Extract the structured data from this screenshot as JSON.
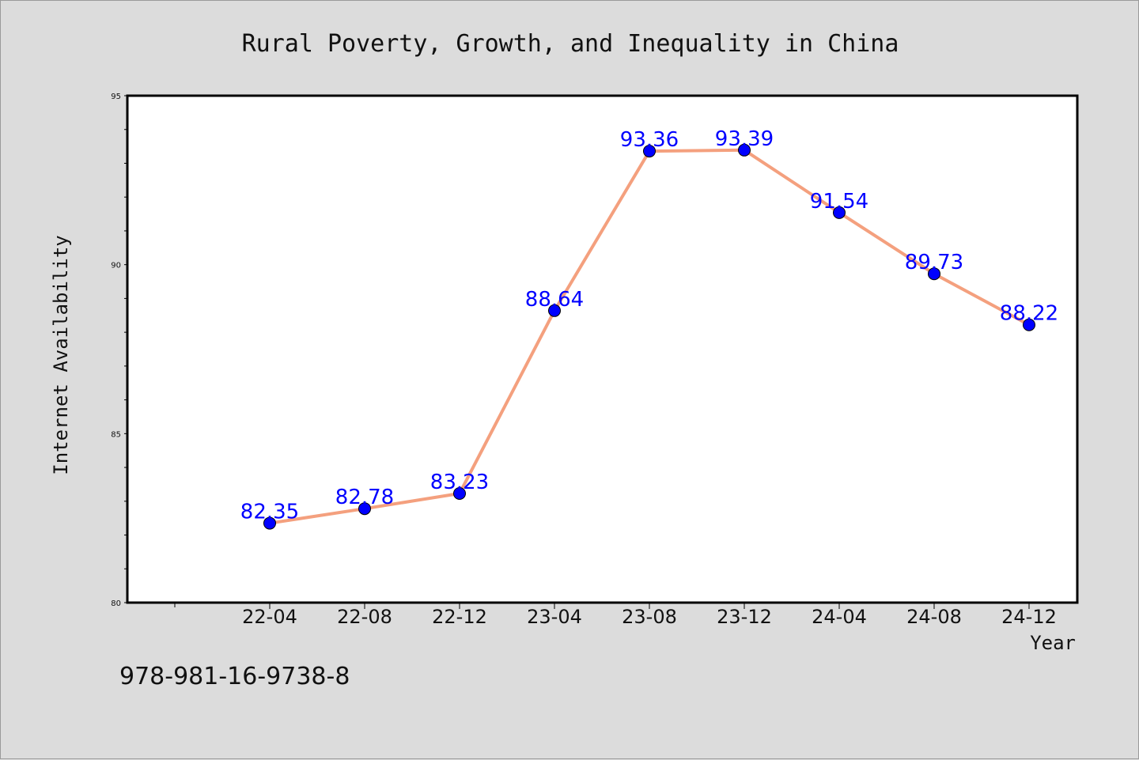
{
  "footer_code": "978-981-16-9738-8",
  "colors": {
    "line": "#f4a07e",
    "marker": "#0000ff",
    "data_label": "#0000ff",
    "plot_bg": "#ffffff",
    "page_bg": "#dcdcdc"
  },
  "chart_data": {
    "type": "line",
    "title": "Rural Poverty, Growth, and Inequality in China",
    "xlabel": "Year",
    "ylabel": "Internet Availability",
    "categories": [
      "22-04",
      "22-08",
      "22-12",
      "23-04",
      "23-08",
      "23-12",
      "24-04",
      "24-08",
      "24-12"
    ],
    "series": [
      {
        "values": [
          82.35,
          82.78,
          83.23,
          88.64,
          93.36,
          93.39,
          91.54,
          89.73,
          88.22
        ],
        "labels": [
          "82.35",
          "82.78",
          "83.23",
          "88.64",
          "93.36",
          "93.39",
          "91.54",
          "89.73",
          "88.22"
        ]
      }
    ],
    "ylim": [
      80,
      95
    ],
    "yticks": [
      "80",
      "85",
      "90",
      "95"
    ],
    "grid": false,
    "legend": "none"
  }
}
